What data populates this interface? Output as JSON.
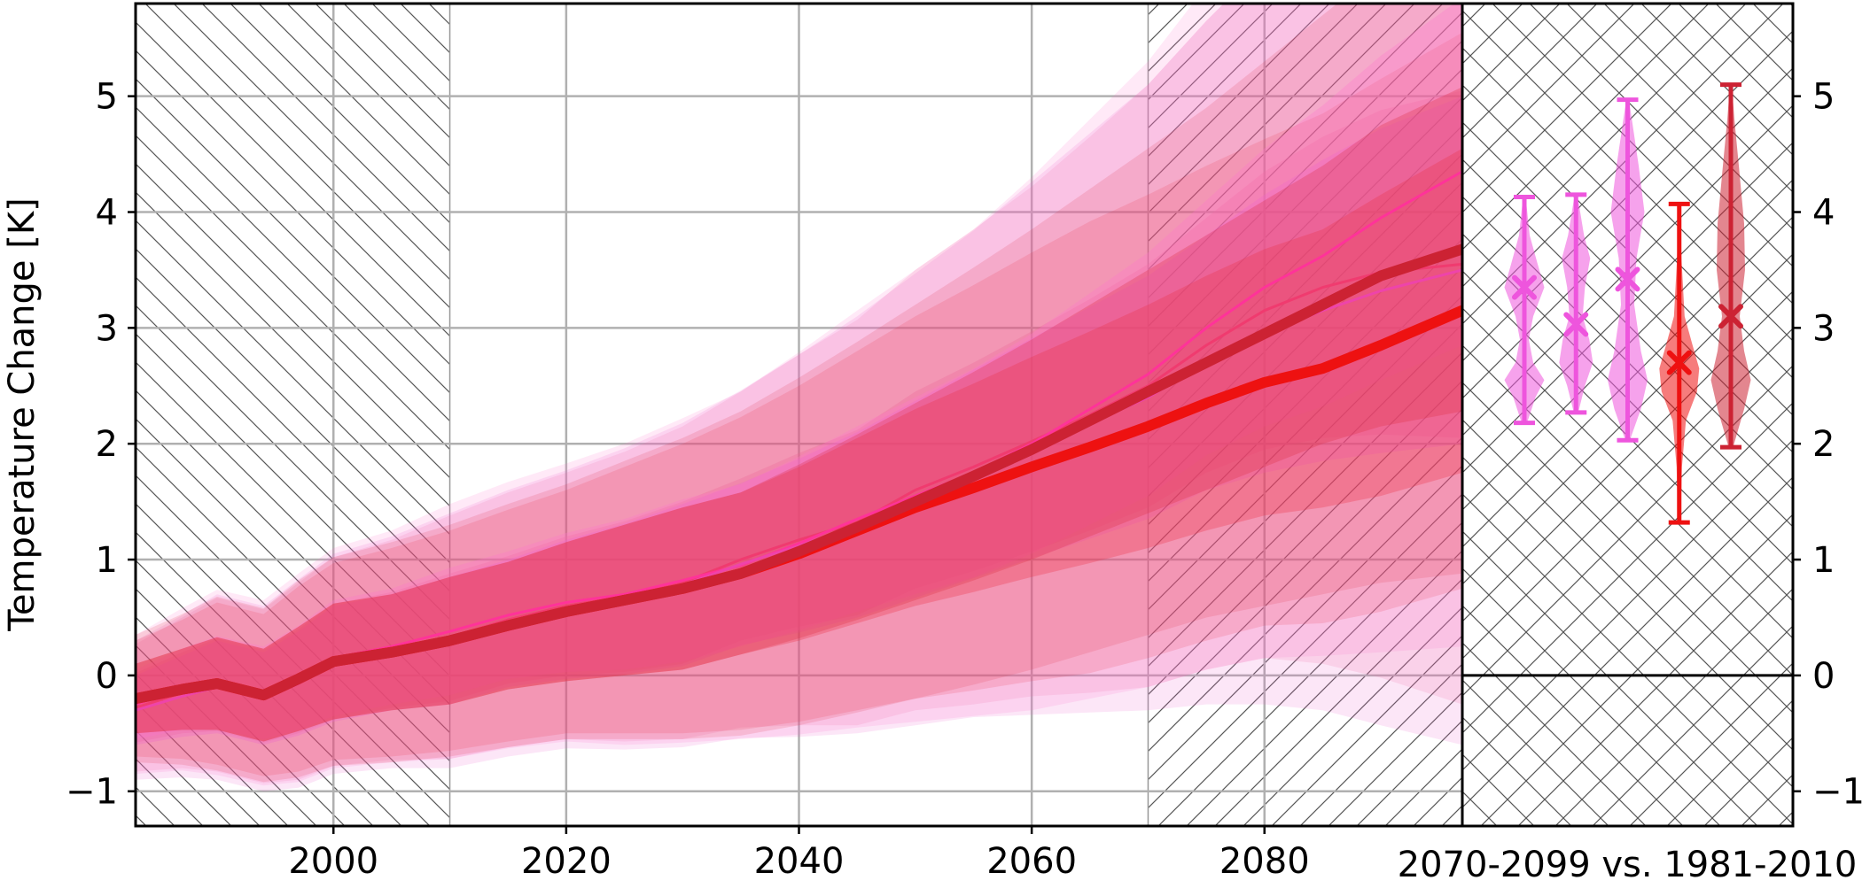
{
  "chart_data": [
    {
      "type": "line",
      "ylabel": "Temperature Change [K]",
      "xlabel": "",
      "xlim": [
        1983,
        2097
      ],
      "ylim": [
        -1.3,
        5.8
      ],
      "xticks": [
        2000,
        2020,
        2040,
        2060,
        2080
      ],
      "yticks": [
        -1,
        0,
        1,
        2,
        3,
        4,
        5
      ],
      "ytick_labels": [
        "−1",
        "0",
        "1",
        "2",
        "3",
        "4",
        "5"
      ],
      "grid": true,
      "hatched_periods": [
        [
          1983,
          2010
        ],
        [
          2070,
          2097
        ]
      ],
      "x": [
        1983,
        1987,
        1990,
        1994,
        1997,
        2000,
        2005,
        2010,
        2015,
        2020,
        2025,
        2030,
        2035,
        2040,
        2045,
        2050,
        2055,
        2060,
        2065,
        2070,
        2075,
        2080,
        2085,
        2090,
        2097
      ],
      "series": [
        {
          "color": "#f03b6f",
          "width": 3,
          "values": [
            -0.28,
            -0.15,
            -0.08,
            -0.18,
            -0.05,
            0.12,
            0.22,
            0.33,
            0.48,
            0.6,
            0.68,
            0.8,
            1.0,
            1.17,
            1.32,
            1.6,
            1.8,
            2.02,
            2.25,
            2.5,
            2.85,
            3.15,
            3.35,
            3.48,
            3.55
          ],
          "band_outer": [
            0.55,
            0.65,
            0.75,
            0.75,
            0.85,
            0.9,
            0.95,
            1.05,
            1.1,
            1.15,
            1.25,
            1.35,
            1.45,
            1.6,
            1.75,
            1.9,
            2.05,
            2.2,
            2.4,
            2.6,
            2.8,
            3.0,
            3.25,
            3.5,
            3.8
          ],
          "band_inner": [
            0.3,
            0.35,
            0.4,
            0.4,
            0.45,
            0.5,
            0.5,
            0.55,
            0.55,
            0.6,
            0.65,
            0.7,
            0.7,
            0.75,
            0.8,
            0.85,
            0.9,
            0.95,
            1.0,
            1.05,
            1.1,
            1.2,
            1.3,
            1.4,
            1.5
          ]
        },
        {
          "color": "#ff3399",
          "width": 3,
          "values": [
            -0.25,
            -0.12,
            -0.06,
            -0.15,
            -0.02,
            0.15,
            0.25,
            0.38,
            0.52,
            0.63,
            0.7,
            0.82,
            0.95,
            1.14,
            1.35,
            1.55,
            1.75,
            2.0,
            2.3,
            2.6,
            3.0,
            3.35,
            3.62,
            3.95,
            4.35
          ],
          "band_outer": [
            0.6,
            0.7,
            0.8,
            0.8,
            0.9,
            0.95,
            1.0,
            1.1,
            1.15,
            1.2,
            1.3,
            1.4,
            1.5,
            1.65,
            1.8,
            1.95,
            2.1,
            2.3,
            2.5,
            2.7,
            2.95,
            3.2,
            3.45,
            3.75,
            4.1
          ],
          "band_inner": [
            0.3,
            0.35,
            0.4,
            0.4,
            0.45,
            0.5,
            0.5,
            0.55,
            0.55,
            0.6,
            0.65,
            0.7,
            0.7,
            0.75,
            0.8,
            0.85,
            0.9,
            0.95,
            1.0,
            1.05,
            1.1,
            1.2,
            1.3,
            1.4,
            1.5
          ]
        },
        {
          "color": "#ee44aa",
          "width": 3,
          "values": [
            -0.3,
            -0.18,
            -0.1,
            -0.2,
            -0.07,
            0.1,
            0.2,
            0.3,
            0.45,
            0.57,
            0.66,
            0.78,
            0.96,
            1.12,
            1.3,
            1.52,
            1.74,
            1.96,
            2.18,
            2.4,
            2.7,
            2.95,
            3.15,
            3.32,
            3.5
          ],
          "band_outer": [
            0.6,
            0.7,
            0.8,
            0.8,
            0.9,
            0.95,
            1.0,
            1.1,
            1.15,
            1.2,
            1.3,
            1.4,
            1.5,
            1.65,
            1.8,
            1.95,
            2.1,
            2.3,
            2.5,
            2.7,
            2.95,
            3.2,
            3.45,
            3.75,
            4.1
          ],
          "band_inner": [
            0.3,
            0.35,
            0.4,
            0.4,
            0.45,
            0.5,
            0.5,
            0.55,
            0.55,
            0.6,
            0.65,
            0.7,
            0.7,
            0.75,
            0.8,
            0.85,
            0.9,
            0.95,
            1.0,
            1.05,
            1.1,
            1.2,
            1.3,
            1.4,
            1.5
          ]
        },
        {
          "color": "#ee1111",
          "width": 12,
          "values": [
            -0.2,
            -0.12,
            -0.07,
            -0.17,
            -0.03,
            0.12,
            0.2,
            0.3,
            0.43,
            0.55,
            0.65,
            0.75,
            0.88,
            1.05,
            1.25,
            1.45,
            1.62,
            1.8,
            1.97,
            2.15,
            2.35,
            2.53,
            2.65,
            2.85,
            3.15
          ],
          "band_outer": [
            0.5,
            0.6,
            0.7,
            0.7,
            0.8,
            0.85,
            0.9,
            0.95,
            1.0,
            1.05,
            1.15,
            1.25,
            1.35,
            1.45,
            1.55,
            1.65,
            1.75,
            1.85,
            1.95,
            2.0,
            2.05,
            2.1,
            2.2,
            2.3,
            2.4
          ],
          "band_inner": [
            0.3,
            0.35,
            0.4,
            0.4,
            0.45,
            0.5,
            0.5,
            0.55,
            0.55,
            0.6,
            0.65,
            0.7,
            0.7,
            0.75,
            0.8,
            0.85,
            0.9,
            0.95,
            1.0,
            1.05,
            1.1,
            1.15,
            1.2,
            1.3,
            1.4
          ]
        },
        {
          "color": "#cc2233",
          "width": 12,
          "values": [
            -0.2,
            -0.12,
            -0.07,
            -0.17,
            -0.03,
            0.12,
            0.2,
            0.3,
            0.43,
            0.55,
            0.65,
            0.75,
            0.88,
            1.07,
            1.28,
            1.5,
            1.72,
            1.95,
            2.2,
            2.45,
            2.7,
            2.95,
            3.2,
            3.45,
            3.68
          ],
          "band_outer": [
            0.55,
            0.65,
            0.75,
            0.75,
            0.85,
            0.9,
            0.95,
            1.0,
            1.05,
            1.1,
            1.2,
            1.3,
            1.4,
            1.5,
            1.6,
            1.7,
            1.8,
            1.9,
            2.0,
            2.1,
            2.2,
            2.35,
            2.5,
            2.65,
            2.8
          ],
          "band_inner": [
            0.3,
            0.35,
            0.4,
            0.4,
            0.45,
            0.5,
            0.5,
            0.55,
            0.55,
            0.6,
            0.65,
            0.7,
            0.7,
            0.75,
            0.8,
            0.85,
            0.9,
            0.95,
            1.0,
            1.05,
            1.1,
            1.15,
            1.2,
            1.3,
            1.4
          ]
        }
      ]
    },
    {
      "type": "violin",
      "xlabel": "2070-2099 vs. 1981-2010",
      "ylim": [
        -1.3,
        5.8
      ],
      "yticks": [
        -1,
        0,
        1,
        2,
        3,
        4,
        5
      ],
      "ytick_labels": [
        "−1",
        "0",
        "1",
        "2",
        "3",
        "4",
        "5"
      ],
      "reference_line": 0,
      "violins": [
        {
          "color": "#ee55dd",
          "min": 2.18,
          "max": 4.13,
          "mean": 3.35,
          "density": [
            [
              2.18,
              0.06
            ],
            [
              2.4,
              0.25
            ],
            [
              2.55,
              0.45
            ],
            [
              2.7,
              0.2
            ],
            [
              2.9,
              0.1
            ],
            [
              3.1,
              0.2
            ],
            [
              3.35,
              0.45
            ],
            [
              3.55,
              0.3
            ],
            [
              3.8,
              0.12
            ],
            [
              4.13,
              0.03
            ]
          ]
        },
        {
          "color": "#ee55dd",
          "min": 2.27,
          "max": 4.15,
          "mean": 3.03,
          "density": [
            [
              2.27,
              0.05
            ],
            [
              2.5,
              0.2
            ],
            [
              2.7,
              0.38
            ],
            [
              2.9,
              0.3
            ],
            [
              3.1,
              0.15
            ],
            [
              3.35,
              0.2
            ],
            [
              3.6,
              0.32
            ],
            [
              3.8,
              0.18
            ],
            [
              4.15,
              0.03
            ]
          ]
        },
        {
          "color": "#ee55dd",
          "min": 2.03,
          "max": 4.97,
          "mean": 3.42,
          "density": [
            [
              2.03,
              0.05
            ],
            [
              2.3,
              0.3
            ],
            [
              2.55,
              0.45
            ],
            [
              2.8,
              0.3
            ],
            [
              3.2,
              0.15
            ],
            [
              3.6,
              0.2
            ],
            [
              4.0,
              0.38
            ],
            [
              4.4,
              0.25
            ],
            [
              4.97,
              0.03
            ]
          ]
        },
        {
          "color": "#ee1111",
          "min": 1.32,
          "max": 4.07,
          "mean": 2.7,
          "density": [
            [
              1.32,
              0.03
            ],
            [
              1.8,
              0.06
            ],
            [
              2.2,
              0.15
            ],
            [
              2.45,
              0.4
            ],
            [
              2.65,
              0.45
            ],
            [
              2.85,
              0.3
            ],
            [
              3.1,
              0.12
            ],
            [
              3.6,
              0.05
            ],
            [
              4.07,
              0.02
            ]
          ]
        },
        {
          "color": "#cc2233",
          "min": 1.97,
          "max": 5.1,
          "mean": 3.1,
          "density": [
            [
              1.97,
              0.05
            ],
            [
              2.3,
              0.3
            ],
            [
              2.55,
              0.45
            ],
            [
              2.8,
              0.3
            ],
            [
              3.1,
              0.2
            ],
            [
              3.5,
              0.32
            ],
            [
              3.9,
              0.3
            ],
            [
              4.4,
              0.18
            ],
            [
              4.8,
              0.08
            ],
            [
              5.1,
              0.02
            ]
          ]
        }
      ]
    }
  ]
}
